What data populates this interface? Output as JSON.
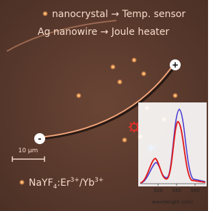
{
  "captions": [
    "nanocrystal → Temp. sensor",
    "Ag nanowire → Joule heater"
  ],
  "electrodes": {
    "positive": "+",
    "negative": "-"
  },
  "scale_bar": "10 μm",
  "formula": [
    "NaYF",
    "4",
    ":Er",
    "3+",
    "/Yb",
    "3+"
  ],
  "inset": {
    "xlabel": "wavelength (nm)",
    "xticks": [
      520,
      540,
      560
    ]
  }
}
